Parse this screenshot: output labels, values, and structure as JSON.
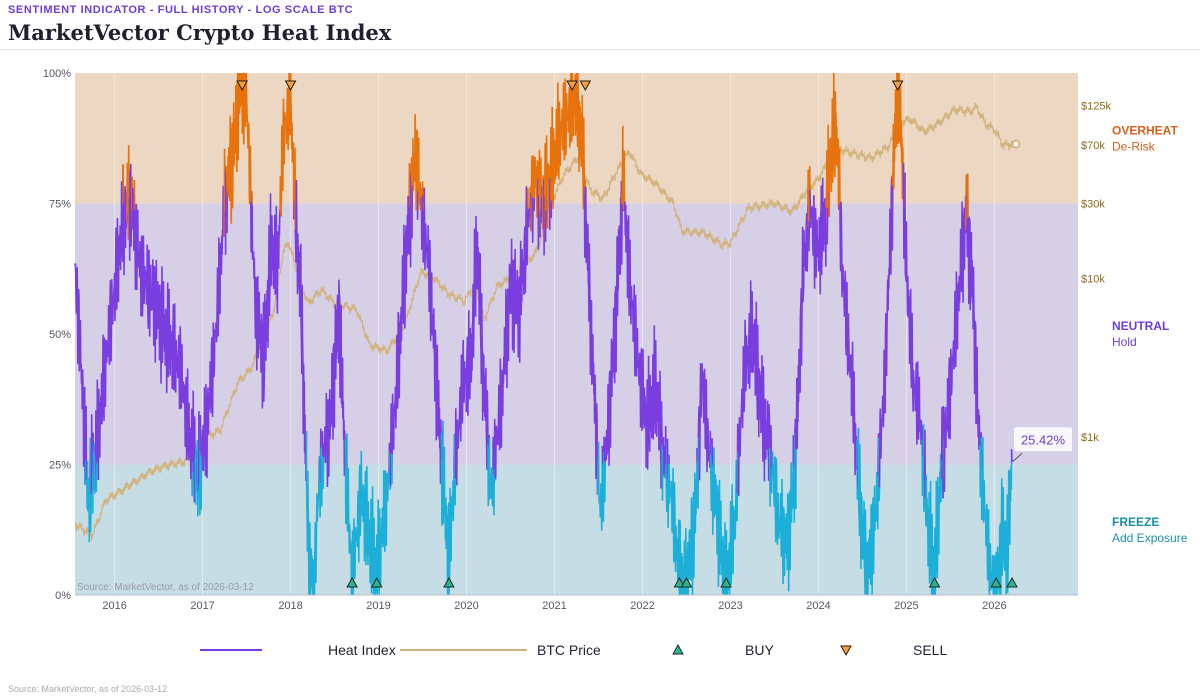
{
  "header": {
    "kicker": "SENTIMENT INDICATOR - FULL HISTORY - LOG SCALE BTC",
    "title": "MarketVector Crypto Heat Index"
  },
  "source_inside": "Source: MarketVector, as of 2026-03-12",
  "source_footer": "Source: MarketVector, as of 2026-03-12",
  "colors": {
    "overheat_band": "#ecd7c2",
    "neutral_band": "#d6d0e6",
    "freeze_band": "#c7dde6",
    "heat_overheat": "#e8720c",
    "heat_neutral": "#7a3ee0",
    "heat_freeze": "#1cb0d8",
    "btc": "#d2b37d",
    "buy": "#2fb38c",
    "sell": "#f0a040",
    "overheat_label": "#d4621c",
    "neutral_label": "#6b3fd6",
    "freeze_label": "#1b8fa8"
  },
  "chart_data": {
    "type": "line",
    "title": "MarketVector Crypto Heat Index",
    "x_range": [
      2015.55,
      2026.95
    ],
    "x_ticks": [
      "2016",
      "2017",
      "2018",
      "2019",
      "2020",
      "2021",
      "2022",
      "2023",
      "2024",
      "2025",
      "2026"
    ],
    "y_left": {
      "range": [
        0,
        100
      ],
      "ticks": [
        "0%",
        "25%",
        "50%",
        "75%",
        "100%"
      ]
    },
    "y_right": {
      "scale": "log",
      "range": [
        100,
        200000
      ],
      "ticks": [
        {
          "label": "$1k",
          "value": 1000
        },
        {
          "label": "$10k",
          "value": 10000
        },
        {
          "label": "$30k",
          "value": 30000
        },
        {
          "label": "$70k",
          "value": 70000
        },
        {
          "label": "$125k",
          "value": 125000
        }
      ]
    },
    "zones": [
      {
        "name": "OVERHEAT",
        "action": "De-Risk",
        "from": 75,
        "to": 100
      },
      {
        "name": "NEUTRAL",
        "action": "Hold",
        "from": 25,
        "to": 75
      },
      {
        "name": "FREEZE",
        "action": "Add Exposure",
        "from": 0,
        "to": 25
      }
    ],
    "series": [
      {
        "name": "Heat Index",
        "unit": "%",
        "points": [
          [
            2015.55,
            63
          ],
          [
            2015.62,
            44
          ],
          [
            2015.7,
            18
          ],
          [
            2015.8,
            28
          ],
          [
            2015.9,
            45
          ],
          [
            2016.0,
            58
          ],
          [
            2016.1,
            72
          ],
          [
            2016.18,
            77
          ],
          [
            2016.3,
            62
          ],
          [
            2016.45,
            57
          ],
          [
            2016.6,
            49
          ],
          [
            2016.75,
            43
          ],
          [
            2016.85,
            30
          ],
          [
            2016.95,
            22
          ],
          [
            2017.05,
            33
          ],
          [
            2017.15,
            50
          ],
          [
            2017.25,
            75
          ],
          [
            2017.35,
            86
          ],
          [
            2017.42,
            97
          ],
          [
            2017.5,
            95
          ],
          [
            2017.6,
            56
          ],
          [
            2017.7,
            45
          ],
          [
            2017.78,
            67
          ],
          [
            2017.85,
            62
          ],
          [
            2017.92,
            88
          ],
          [
            2018.0,
            95
          ],
          [
            2018.05,
            74
          ],
          [
            2018.12,
            55
          ],
          [
            2018.2,
            12
          ],
          [
            2018.26,
            0
          ],
          [
            2018.32,
            21
          ],
          [
            2018.45,
            34
          ],
          [
            2018.55,
            55
          ],
          [
            2018.62,
            26
          ],
          [
            2018.7,
            3
          ],
          [
            2018.8,
            20
          ],
          [
            2018.88,
            12
          ],
          [
            2018.98,
            4
          ],
          [
            2019.1,
            20
          ],
          [
            2019.2,
            38
          ],
          [
            2019.3,
            63
          ],
          [
            2019.42,
            86
          ],
          [
            2019.48,
            75
          ],
          [
            2019.58,
            62
          ],
          [
            2019.7,
            30
          ],
          [
            2019.8,
            6
          ],
          [
            2019.85,
            20
          ],
          [
            2019.95,
            40
          ],
          [
            2020.05,
            44
          ],
          [
            2020.12,
            67
          ],
          [
            2020.18,
            45
          ],
          [
            2020.28,
            20
          ],
          [
            2020.4,
            38
          ],
          [
            2020.5,
            60
          ],
          [
            2020.6,
            55
          ],
          [
            2020.7,
            72
          ],
          [
            2020.78,
            80
          ],
          [
            2020.85,
            75
          ],
          [
            2020.93,
            77
          ],
          [
            2021.05,
            88
          ],
          [
            2021.15,
            92
          ],
          [
            2021.25,
            95
          ],
          [
            2021.32,
            85
          ],
          [
            2021.42,
            50
          ],
          [
            2021.52,
            16
          ],
          [
            2021.6,
            30
          ],
          [
            2021.7,
            55
          ],
          [
            2021.78,
            80
          ],
          [
            2021.85,
            60
          ],
          [
            2021.95,
            45
          ],
          [
            2022.05,
            32
          ],
          [
            2022.15,
            40
          ],
          [
            2022.22,
            28
          ],
          [
            2022.32,
            20
          ],
          [
            2022.42,
            4
          ],
          [
            2022.5,
            2
          ],
          [
            2022.6,
            16
          ],
          [
            2022.68,
            42
          ],
          [
            2022.75,
            28
          ],
          [
            2022.82,
            20
          ],
          [
            2022.95,
            1
          ],
          [
            2023.05,
            14
          ],
          [
            2023.15,
            42
          ],
          [
            2023.25,
            50
          ],
          [
            2023.35,
            36
          ],
          [
            2023.45,
            28
          ],
          [
            2023.55,
            14
          ],
          [
            2023.65,
            10
          ],
          [
            2023.75,
            30
          ],
          [
            2023.82,
            60
          ],
          [
            2023.9,
            75
          ],
          [
            2023.98,
            66
          ],
          [
            2024.08,
            72
          ],
          [
            2024.15,
            85
          ],
          [
            2024.2,
            90
          ],
          [
            2024.28,
            60
          ],
          [
            2024.38,
            40
          ],
          [
            2024.45,
            22
          ],
          [
            2024.55,
            3
          ],
          [
            2024.65,
            16
          ],
          [
            2024.75,
            40
          ],
          [
            2024.82,
            70
          ],
          [
            2024.9,
            100
          ],
          [
            2024.95,
            85
          ],
          [
            2025.0,
            62
          ],
          [
            2025.08,
            40
          ],
          [
            2025.15,
            35
          ],
          [
            2025.25,
            12
          ],
          [
            2025.32,
            4
          ],
          [
            2025.4,
            25
          ],
          [
            2025.5,
            40
          ],
          [
            2025.58,
            55
          ],
          [
            2025.68,
            74
          ],
          [
            2025.75,
            60
          ],
          [
            2025.82,
            32
          ],
          [
            2025.88,
            18
          ],
          [
            2025.95,
            5
          ],
          [
            2026.02,
            0
          ],
          [
            2026.08,
            12
          ],
          [
            2026.15,
            8
          ],
          [
            2026.2,
            25.42
          ]
        ]
      },
      {
        "name": "BTC Price",
        "unit": "USD",
        "points": [
          [
            2015.55,
            280
          ],
          [
            2015.75,
            240
          ],
          [
            2015.9,
            400
          ],
          [
            2016.0,
            430
          ],
          [
            2016.4,
            600
          ],
          [
            2016.55,
            650
          ],
          [
            2016.8,
            700
          ],
          [
            2017.0,
            970
          ],
          [
            2017.2,
            1100
          ],
          [
            2017.4,
            2200
          ],
          [
            2017.55,
            2700
          ],
          [
            2017.7,
            4300
          ],
          [
            2017.8,
            6000
          ],
          [
            2017.92,
            15000
          ],
          [
            2017.98,
            17000
          ],
          [
            2018.1,
            10000
          ],
          [
            2018.2,
            7000
          ],
          [
            2018.35,
            8500
          ],
          [
            2018.5,
            7000
          ],
          [
            2018.75,
            6400
          ],
          [
            2018.9,
            3800
          ],
          [
            2019.1,
            3500
          ],
          [
            2019.3,
            5200
          ],
          [
            2019.48,
            11000
          ],
          [
            2019.6,
            10500
          ],
          [
            2019.8,
            8000
          ],
          [
            2019.98,
            7200
          ],
          [
            2020.1,
            9500
          ],
          [
            2020.2,
            5500
          ],
          [
            2020.35,
            9000
          ],
          [
            2020.6,
            11000
          ],
          [
            2020.8,
            15000
          ],
          [
            2020.95,
            29000
          ],
          [
            2021.1,
            45000
          ],
          [
            2021.28,
            60000
          ],
          [
            2021.4,
            37000
          ],
          [
            2021.55,
            32000
          ],
          [
            2021.7,
            47000
          ],
          [
            2021.85,
            64000
          ],
          [
            2021.98,
            46000
          ],
          [
            2022.15,
            40000
          ],
          [
            2022.35,
            30000
          ],
          [
            2022.45,
            20000
          ],
          [
            2022.7,
            19500
          ],
          [
            2022.9,
            16500
          ],
          [
            2023.0,
            16800
          ],
          [
            2023.2,
            28000
          ],
          [
            2023.5,
            30000
          ],
          [
            2023.7,
            26500
          ],
          [
            2023.85,
            35000
          ],
          [
            2024.0,
            43000
          ],
          [
            2024.2,
            67000
          ],
          [
            2024.4,
            62000
          ],
          [
            2024.6,
            58000
          ],
          [
            2024.8,
            69000
          ],
          [
            2024.92,
            98000
          ],
          [
            2025.05,
            102000
          ],
          [
            2025.2,
            85000
          ],
          [
            2025.35,
            95000
          ],
          [
            2025.55,
            118000
          ],
          [
            2025.72,
            114000
          ],
          [
            2025.8,
            122000
          ],
          [
            2025.9,
            95000
          ],
          [
            2026.0,
            88000
          ],
          [
            2026.1,
            70000
          ],
          [
            2026.2,
            71000
          ]
        ]
      }
    ],
    "signals": {
      "buy": [
        2018.7,
        2018.98,
        2019.8,
        2022.42,
        2022.5,
        2022.95,
        2025.32,
        2026.02,
        2026.2
      ],
      "sell": [
        2017.45,
        2018.0,
        2021.2,
        2021.35,
        2024.9
      ]
    },
    "last_value_label": "25.42%",
    "legend": [
      {
        "name": "Heat Index",
        "kind": "line"
      },
      {
        "name": "BTC Price",
        "kind": "line"
      },
      {
        "name": "BUY",
        "kind": "marker"
      },
      {
        "name": "SELL",
        "kind": "marker"
      }
    ]
  }
}
